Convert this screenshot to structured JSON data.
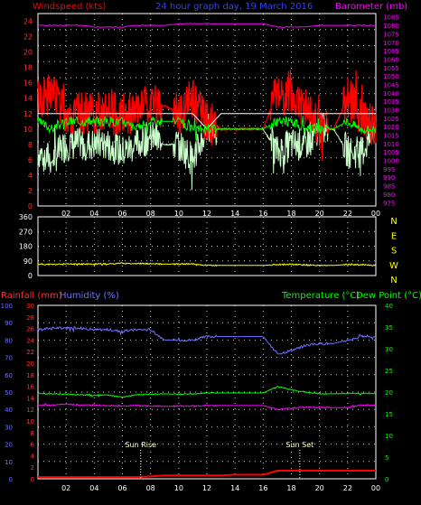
{
  "header": {
    "left_title": "Windspeed (kts)",
    "center_title": "24 hour graph day, 19 March 2016",
    "right_title": "Barometer (mb)"
  },
  "colors": {
    "red": "#ff0000",
    "green": "#00ff00",
    "magenta": "#ff00ff",
    "blue": "#7070ff",
    "yellow": "#ffff00",
    "white": "#ffffff",
    "lightgreen": "#c8ffc8",
    "grid": "#ffffff",
    "frame": "#ffffff"
  },
  "time_ticks": [
    "02",
    "04",
    "06",
    "08",
    "10",
    "12",
    "14",
    "16",
    "18",
    "20",
    "22",
    "00"
  ],
  "chart_data": [
    {
      "type": "line",
      "name": "wind-barometer",
      "ylabel_left": "Windspeed (kts)",
      "ylabel_right": "Barometer (mb)",
      "ylim_left": [
        0,
        25
      ],
      "ylim_right": [
        973,
        1087
      ],
      "left_ticks": [
        "0",
        "2",
        "4",
        "6",
        "8",
        "10",
        "12",
        "14",
        "16",
        "18",
        "20",
        "22",
        "24"
      ],
      "right_ticks": [
        "975",
        "980",
        "985",
        "990",
        "995",
        "1000",
        "1005",
        "1010",
        "1015",
        "1020",
        "1025",
        "1030",
        "1035",
        "1040",
        "1045",
        "1050",
        "1055",
        "1060",
        "1065",
        "1070",
        "1075",
        "1080",
        "1085"
      ],
      "x": [
        0,
        1,
        2,
        3,
        4,
        5,
        6,
        7,
        8,
        9,
        10,
        11,
        12,
        13,
        14,
        15,
        16,
        17,
        18,
        19,
        20,
        21,
        22,
        23,
        24
      ],
      "series": [
        {
          "key": "gust",
          "values": [
            14,
            15,
            12,
            12,
            12,
            12,
            12,
            12,
            13,
            13,
            12,
            14,
            11,
            10,
            10,
            10,
            10,
            15,
            14,
            13,
            10,
            10,
            14,
            12,
            10
          ]
        },
        {
          "key": "avg",
          "values": [
            11,
            10,
            11,
            11,
            11,
            11,
            11,
            10,
            11,
            11,
            11,
            10,
            10,
            10,
            10,
            10,
            10,
            11,
            11,
            10,
            10,
            10,
            11,
            10,
            10
          ]
        },
        {
          "key": "dir_avg",
          "values": [
            12,
            12,
            12,
            12,
            12,
            12,
            12,
            12,
            12,
            12,
            12,
            12,
            10,
            12,
            12,
            12,
            12,
            12,
            12,
            12,
            12,
            12,
            12,
            12,
            12
          ]
        },
        {
          "key": "low",
          "values": [
            7,
            6,
            8,
            8,
            8,
            8,
            7,
            8,
            9,
            8,
            8,
            6,
            10,
            10,
            10,
            10,
            10,
            7,
            8,
            8,
            10,
            10,
            7,
            7,
            10
          ]
        },
        {
          "key": "barometer",
          "values": [
            1080,
            1080,
            1080,
            1080,
            1079,
            1079,
            1079,
            1080,
            1080,
            1080,
            1081,
            1081,
            1081,
            1081,
            1081,
            1081,
            1081,
            1079,
            1079,
            1079,
            1080,
            1080,
            1080,
            1080,
            1080
          ]
        }
      ]
    },
    {
      "type": "line",
      "name": "wind-direction",
      "ylim": [
        0,
        360
      ],
      "left_ticks": [
        "0",
        "90",
        "180",
        "270",
        "360"
      ],
      "right_labels": [
        "N",
        "W",
        "S",
        "E",
        "N"
      ],
      "x": [
        0,
        1,
        2,
        3,
        4,
        5,
        6,
        7,
        8,
        9,
        10,
        11,
        12,
        13,
        14,
        15,
        16,
        17,
        18,
        19,
        20,
        21,
        22,
        23,
        24
      ],
      "series": [
        {
          "key": "direction",
          "values": [
            70,
            68,
            70,
            70,
            70,
            72,
            75,
            74,
            72,
            70,
            70,
            72,
            62,
            62,
            62,
            62,
            62,
            68,
            68,
            65,
            62,
            62,
            68,
            66,
            62
          ]
        }
      ]
    },
    {
      "type": "line",
      "name": "temp-humidity-rain",
      "ylabel_left_1": "Rainfall (mm)",
      "ylabel_left_2": "Humidity (%)",
      "ylabel_right": "Temperature (°C)",
      "ylabel_right_2": "Dew Point (°C)",
      "rain_ticks": [
        "0",
        "2",
        "4",
        "6",
        "8",
        "10",
        "12",
        "14",
        "16",
        "18",
        "20",
        "22",
        "24",
        "26",
        "28",
        "30"
      ],
      "humidity_ticks": [
        "0",
        "10",
        "20",
        "30",
        "40",
        "50",
        "60",
        "70",
        "80",
        "90",
        "100"
      ],
      "temp_ticks": [
        "0",
        "5",
        "10",
        "15",
        "20",
        "25",
        "30",
        "35",
        "40"
      ],
      "ylim_humidity": [
        0,
        100
      ],
      "ylim_temp": [
        0,
        40
      ],
      "x": [
        0,
        1,
        2,
        3,
        4,
        5,
        6,
        7,
        8,
        9,
        10,
        11,
        12,
        13,
        14,
        15,
        16,
        17,
        18,
        19,
        20,
        21,
        22,
        23,
        24
      ],
      "series": [
        {
          "key": "humidity",
          "values": [
            86,
            87,
            87,
            87,
            86,
            86,
            85,
            86,
            86,
            80,
            80,
            80,
            82,
            82,
            82,
            82,
            82,
            72,
            74,
            77,
            78,
            78,
            80,
            82,
            82
          ]
        },
        {
          "key": "temperature",
          "values": [
            19.7,
            19.6,
            19.5,
            19.4,
            19.3,
            19.3,
            18.8,
            19.4,
            19.5,
            19.6,
            19.5,
            19.6,
            19.8,
            19.8,
            19.8,
            19.8,
            19.8,
            21.3,
            20.5,
            20.0,
            19.6,
            19.6,
            19.7,
            19.7,
            19.7
          ]
        },
        {
          "key": "dewpoint",
          "values": [
            17.0,
            17.0,
            17.2,
            17.0,
            17.0,
            16.9,
            16.8,
            16.9,
            16.8,
            16.7,
            16.8,
            16.8,
            16.9,
            16.9,
            16.9,
            16.9,
            16.9,
            16.0,
            16.3,
            16.5,
            16.5,
            16.4,
            16.4,
            17.0,
            17.0
          ]
        },
        {
          "key": "rain",
          "values": [
            0.3,
            0.3,
            0.3,
            0.3,
            0.3,
            0.3,
            0.3,
            0.3,
            0.4,
            0.6,
            0.6,
            0.6,
            0.6,
            0.6,
            0.7,
            0.7,
            0.7,
            1.4,
            1.4,
            1.4,
            1.4,
            1.4,
            1.4,
            1.4,
            1.4
          ]
        }
      ],
      "annotations": [
        "Sun Rise",
        "Sun Set"
      ]
    }
  ]
}
